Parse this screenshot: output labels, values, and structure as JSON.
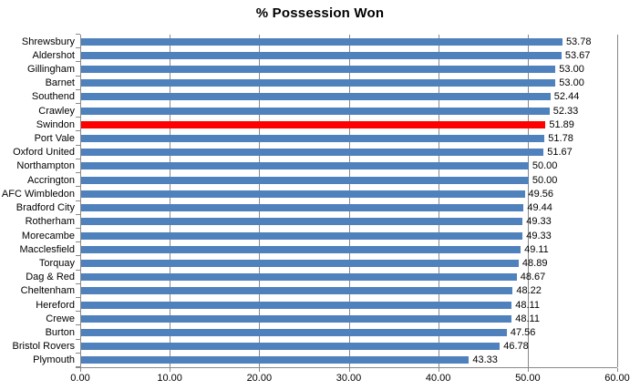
{
  "chart_data": {
    "type": "bar",
    "orientation": "horizontal",
    "title": "% Possession Won",
    "xlabel": "",
    "ylabel": "",
    "categories": [
      "Shrewsbury",
      "Aldershot",
      "Gillingham",
      "Barnet",
      "Southend",
      "Crawley",
      "Swindon",
      "Port Vale",
      "Oxford United",
      "Northampton",
      "Accrington",
      "AFC Wimbledon",
      "Bradford City",
      "Rotherham",
      "Morecambe",
      "Macclesfield",
      "Torquay",
      "Dag & Red",
      "Cheltenham",
      "Hereford",
      "Crewe",
      "Burton",
      "Bristol Rovers",
      "Plymouth"
    ],
    "values": [
      53.78,
      53.67,
      53.0,
      53.0,
      52.44,
      52.33,
      51.89,
      51.78,
      51.67,
      50.0,
      50.0,
      49.56,
      49.44,
      49.33,
      49.33,
      49.11,
      48.89,
      48.67,
      48.22,
      48.11,
      48.11,
      47.56,
      46.78,
      43.33
    ],
    "highlight_index": 6,
    "highlight_category": "Swindon",
    "xlim": [
      0,
      60
    ],
    "x_ticks": [
      0,
      10,
      20,
      30,
      40,
      50,
      60
    ],
    "x_tick_labels": [
      "0.00",
      "10.00",
      "20.00",
      "30.00",
      "40.00",
      "50.00",
      "60.00"
    ],
    "grid": "vertical-only",
    "legend": "none",
    "value_labels": "end-of-bar, 2 decimal places",
    "colors": {
      "bar": "#4F81BD",
      "highlight": "#FF0000",
      "gridline": "#898989",
      "axis": "#898989",
      "text": "#000000",
      "background": "#FFFFFF"
    }
  }
}
